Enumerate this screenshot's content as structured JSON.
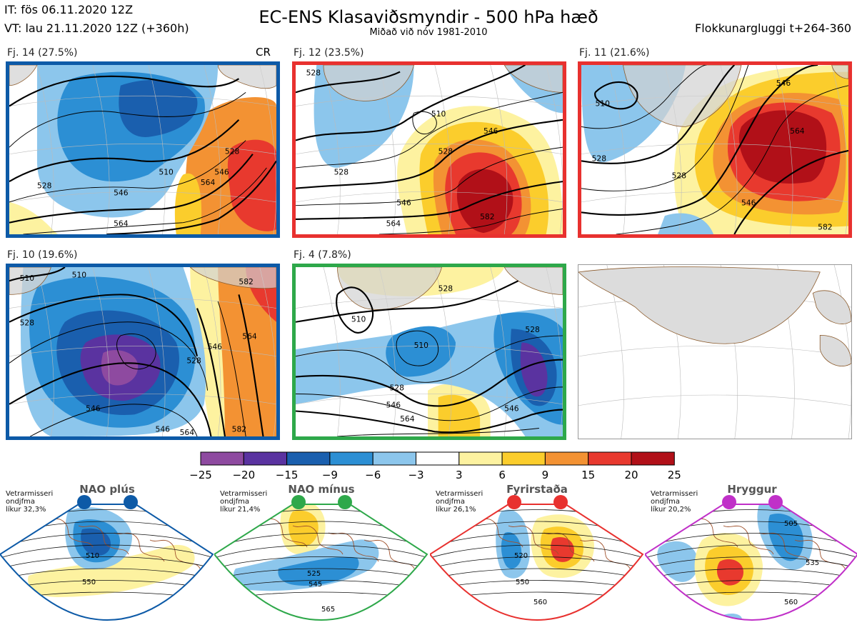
{
  "header": {
    "it": "IT: fös 06.11.2020 12Z",
    "vt": "VT: lau 21.11.2020 12Z  (+360h)",
    "title": "EC-ENS Klasaviðsmyndir - 500 hPa hæð",
    "subtitle": "Miðað við nóv 1981-2010",
    "window": "Flokkunargluggi t+264-360"
  },
  "panels": [
    {
      "label": "Fj. 14 (27.5%)",
      "tag": "CR",
      "border": "#0d5aa7",
      "contours": [
        "510",
        "528",
        "546",
        "564",
        "528",
        "546",
        "564"
      ]
    },
    {
      "label": "Fj. 12 (23.5%)",
      "tag": "",
      "border": "#e8312f",
      "contours": [
        "528",
        "510",
        "528",
        "546",
        "528",
        "546",
        "564",
        "582"
      ]
    },
    {
      "label": "Fj. 11 (21.6%)",
      "tag": "",
      "border": "#e8312f",
      "contours": [
        "510",
        "528",
        "528",
        "546",
        "546",
        "564",
        "582"
      ]
    },
    {
      "label": "Fj. 10 (19.6%)",
      "tag": "",
      "border": "#0d5aa7",
      "contours": [
        "510",
        "510",
        "528",
        "528",
        "546",
        "546",
        "546",
        "564",
        "564",
        "582",
        "582"
      ]
    },
    {
      "label": "Fj. 4 (7.8%)",
      "tag": "",
      "border": "#2ea84a",
      "contours": [
        "510",
        "528",
        "510",
        "528",
        "528",
        "546",
        "564",
        "546"
      ]
    }
  ],
  "colorbar": {
    "ticks": [
      "−25",
      "−20",
      "−15",
      "−9",
      "−6",
      "−3",
      "3",
      "6",
      "9",
      "15",
      "20",
      "25"
    ],
    "colors": [
      "#8e4aa0",
      "#5a33a0",
      "#1a5fae",
      "#2c8fd4",
      "#8cc6ec",
      "#ffffff",
      "#fdf2a0",
      "#fbcd2c",
      "#f39233",
      "#e8392e",
      "#b11018"
    ]
  },
  "regimes": [
    {
      "title": "NAO plús",
      "note": [
        "Vetrarmisseri",
        "ondjfma",
        "líkur 32,3%"
      ],
      "color": "#0d5aa7",
      "contours": [
        "510",
        "550"
      ]
    },
    {
      "title": "NAO mínus",
      "note": [
        "Vetrarmisseri",
        "ondjfma",
        "líkur 21,4%"
      ],
      "color": "#2ea84a",
      "contours": [
        "525",
        "545",
        "565"
      ]
    },
    {
      "title": "Fyrirstaða",
      "note": [
        "Vetrarmisseri",
        "ondjfma",
        "líkur 26,1%"
      ],
      "color": "#e8312f",
      "contours": [
        "520",
        "550",
        "560"
      ]
    },
    {
      "title": "Hryggur",
      "note": [
        "Vetrarmisseri",
        "ondjfma",
        "líkur 20,2%"
      ],
      "color": "#c030c8",
      "contours": [
        "505",
        "535",
        "560"
      ]
    }
  ]
}
